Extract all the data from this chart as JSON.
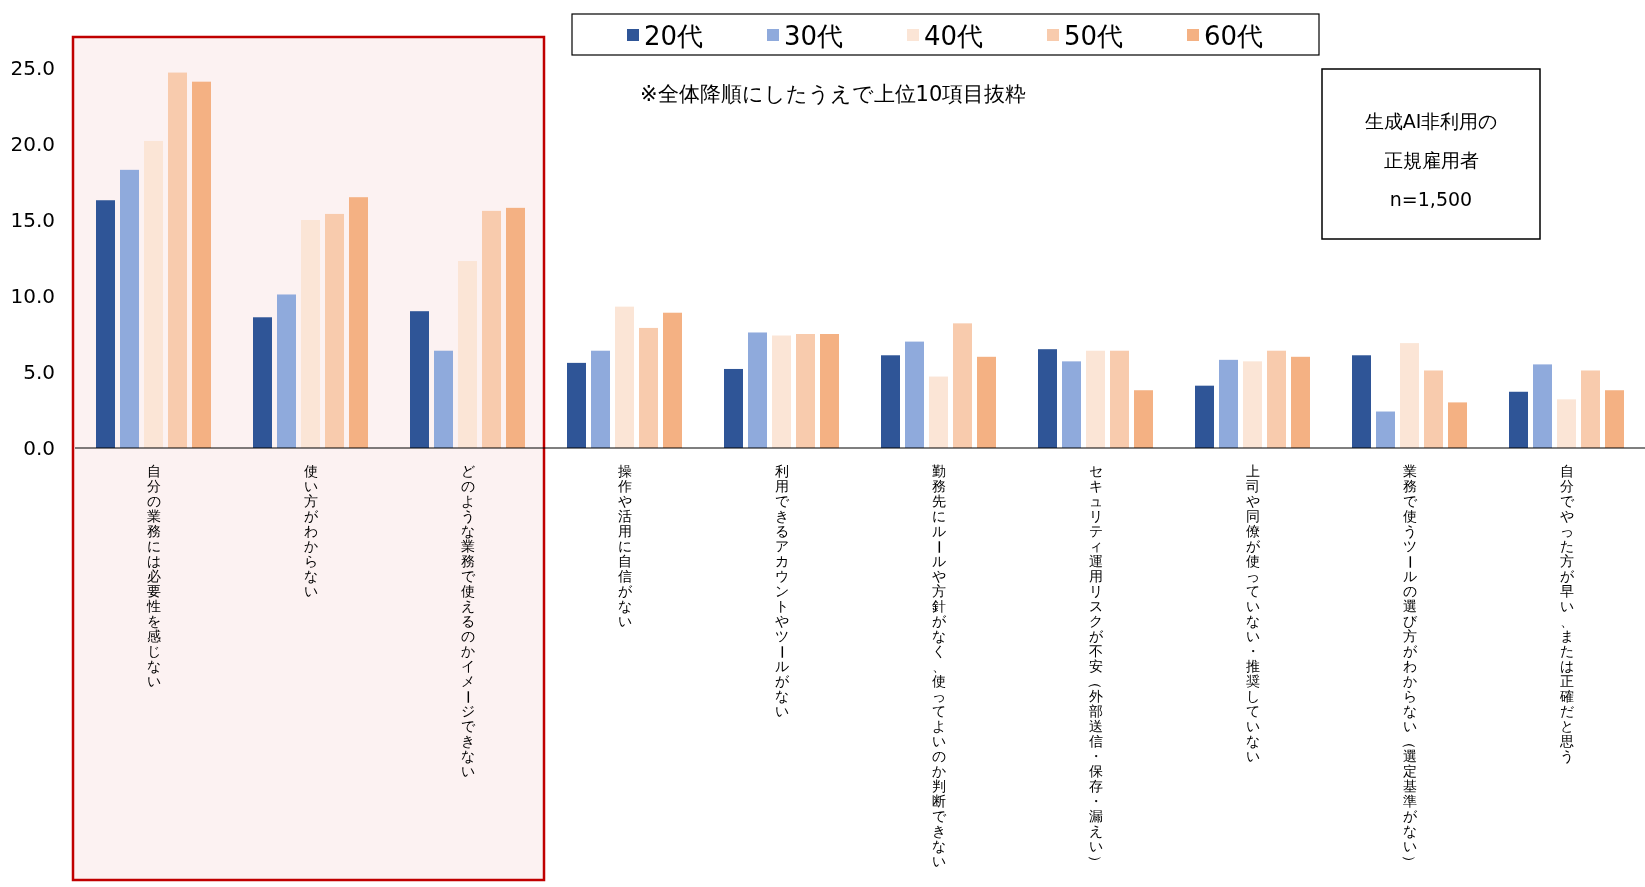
{
  "chart_data": {
    "type": "bar",
    "categories": [
      "自分の業務には必要性を感じない",
      "使い方がわからない",
      "どのような業務で使えるのかイメージできない",
      "操作や活用に自信がない",
      "利用できるアカウントやツールがない",
      "勤務先にルールや方針がなく、使ってよいのか判断できない",
      "セキュリティ運用リスクが不安（外部送信・保存・漏えい）",
      "上司や同僚が使っていない・推奨していない",
      "業務で使うツールの選び方がわからない（選定基準がない）",
      "自分でやった方が早い、または正確だと思う"
    ],
    "series": [
      {
        "name": "20代",
        "color": "#2f5597",
        "values": [
          16.3,
          8.6,
          9.0,
          5.6,
          5.2,
          6.1,
          6.5,
          4.1,
          6.1,
          3.7
        ]
      },
      {
        "name": "30代",
        "color": "#8faadc",
        "values": [
          18.3,
          10.1,
          6.4,
          6.4,
          7.6,
          7.0,
          5.7,
          5.8,
          2.4,
          5.5
        ]
      },
      {
        "name": "40代",
        "color": "#fbe5d6",
        "values": [
          20.2,
          15.0,
          12.3,
          9.3,
          7.4,
          4.7,
          6.4,
          5.7,
          6.9,
          3.2
        ]
      },
      {
        "name": "50代",
        "color": "#f8cbad",
        "values": [
          24.7,
          15.4,
          15.6,
          7.9,
          7.5,
          8.2,
          6.4,
          6.4,
          5.1,
          5.1
        ]
      },
      {
        "name": "60代",
        "color": "#f4b183",
        "values": [
          24.1,
          16.5,
          15.8,
          8.9,
          7.5,
          6.0,
          3.8,
          6.0,
          3.0,
          3.8
        ]
      }
    ],
    "ylim": [
      0,
      25
    ],
    "yticks": [
      {
        "value": 0,
        "label": "0.0"
      },
      {
        "value": 5,
        "label": "5.0"
      },
      {
        "value": 10,
        "label": "10.0"
      },
      {
        "value": 15,
        "label": "15.0"
      },
      {
        "value": 20,
        "label": "20.0"
      },
      {
        "value": 25,
        "label": "25.0"
      }
    ],
    "legend": "top",
    "grid": false,
    "bands": [
      {
        "axis": "x",
        "from": "自分の業務には必要性を感じない",
        "to": "どのような業務で使えるのかイメージできない",
        "color": "#c00000"
      }
    ],
    "annotations": [
      "※全体降順にしたうえで上位10項目抜粋",
      "生成AI非利用の",
      "正規雇用者",
      "n=1,500"
    ]
  }
}
